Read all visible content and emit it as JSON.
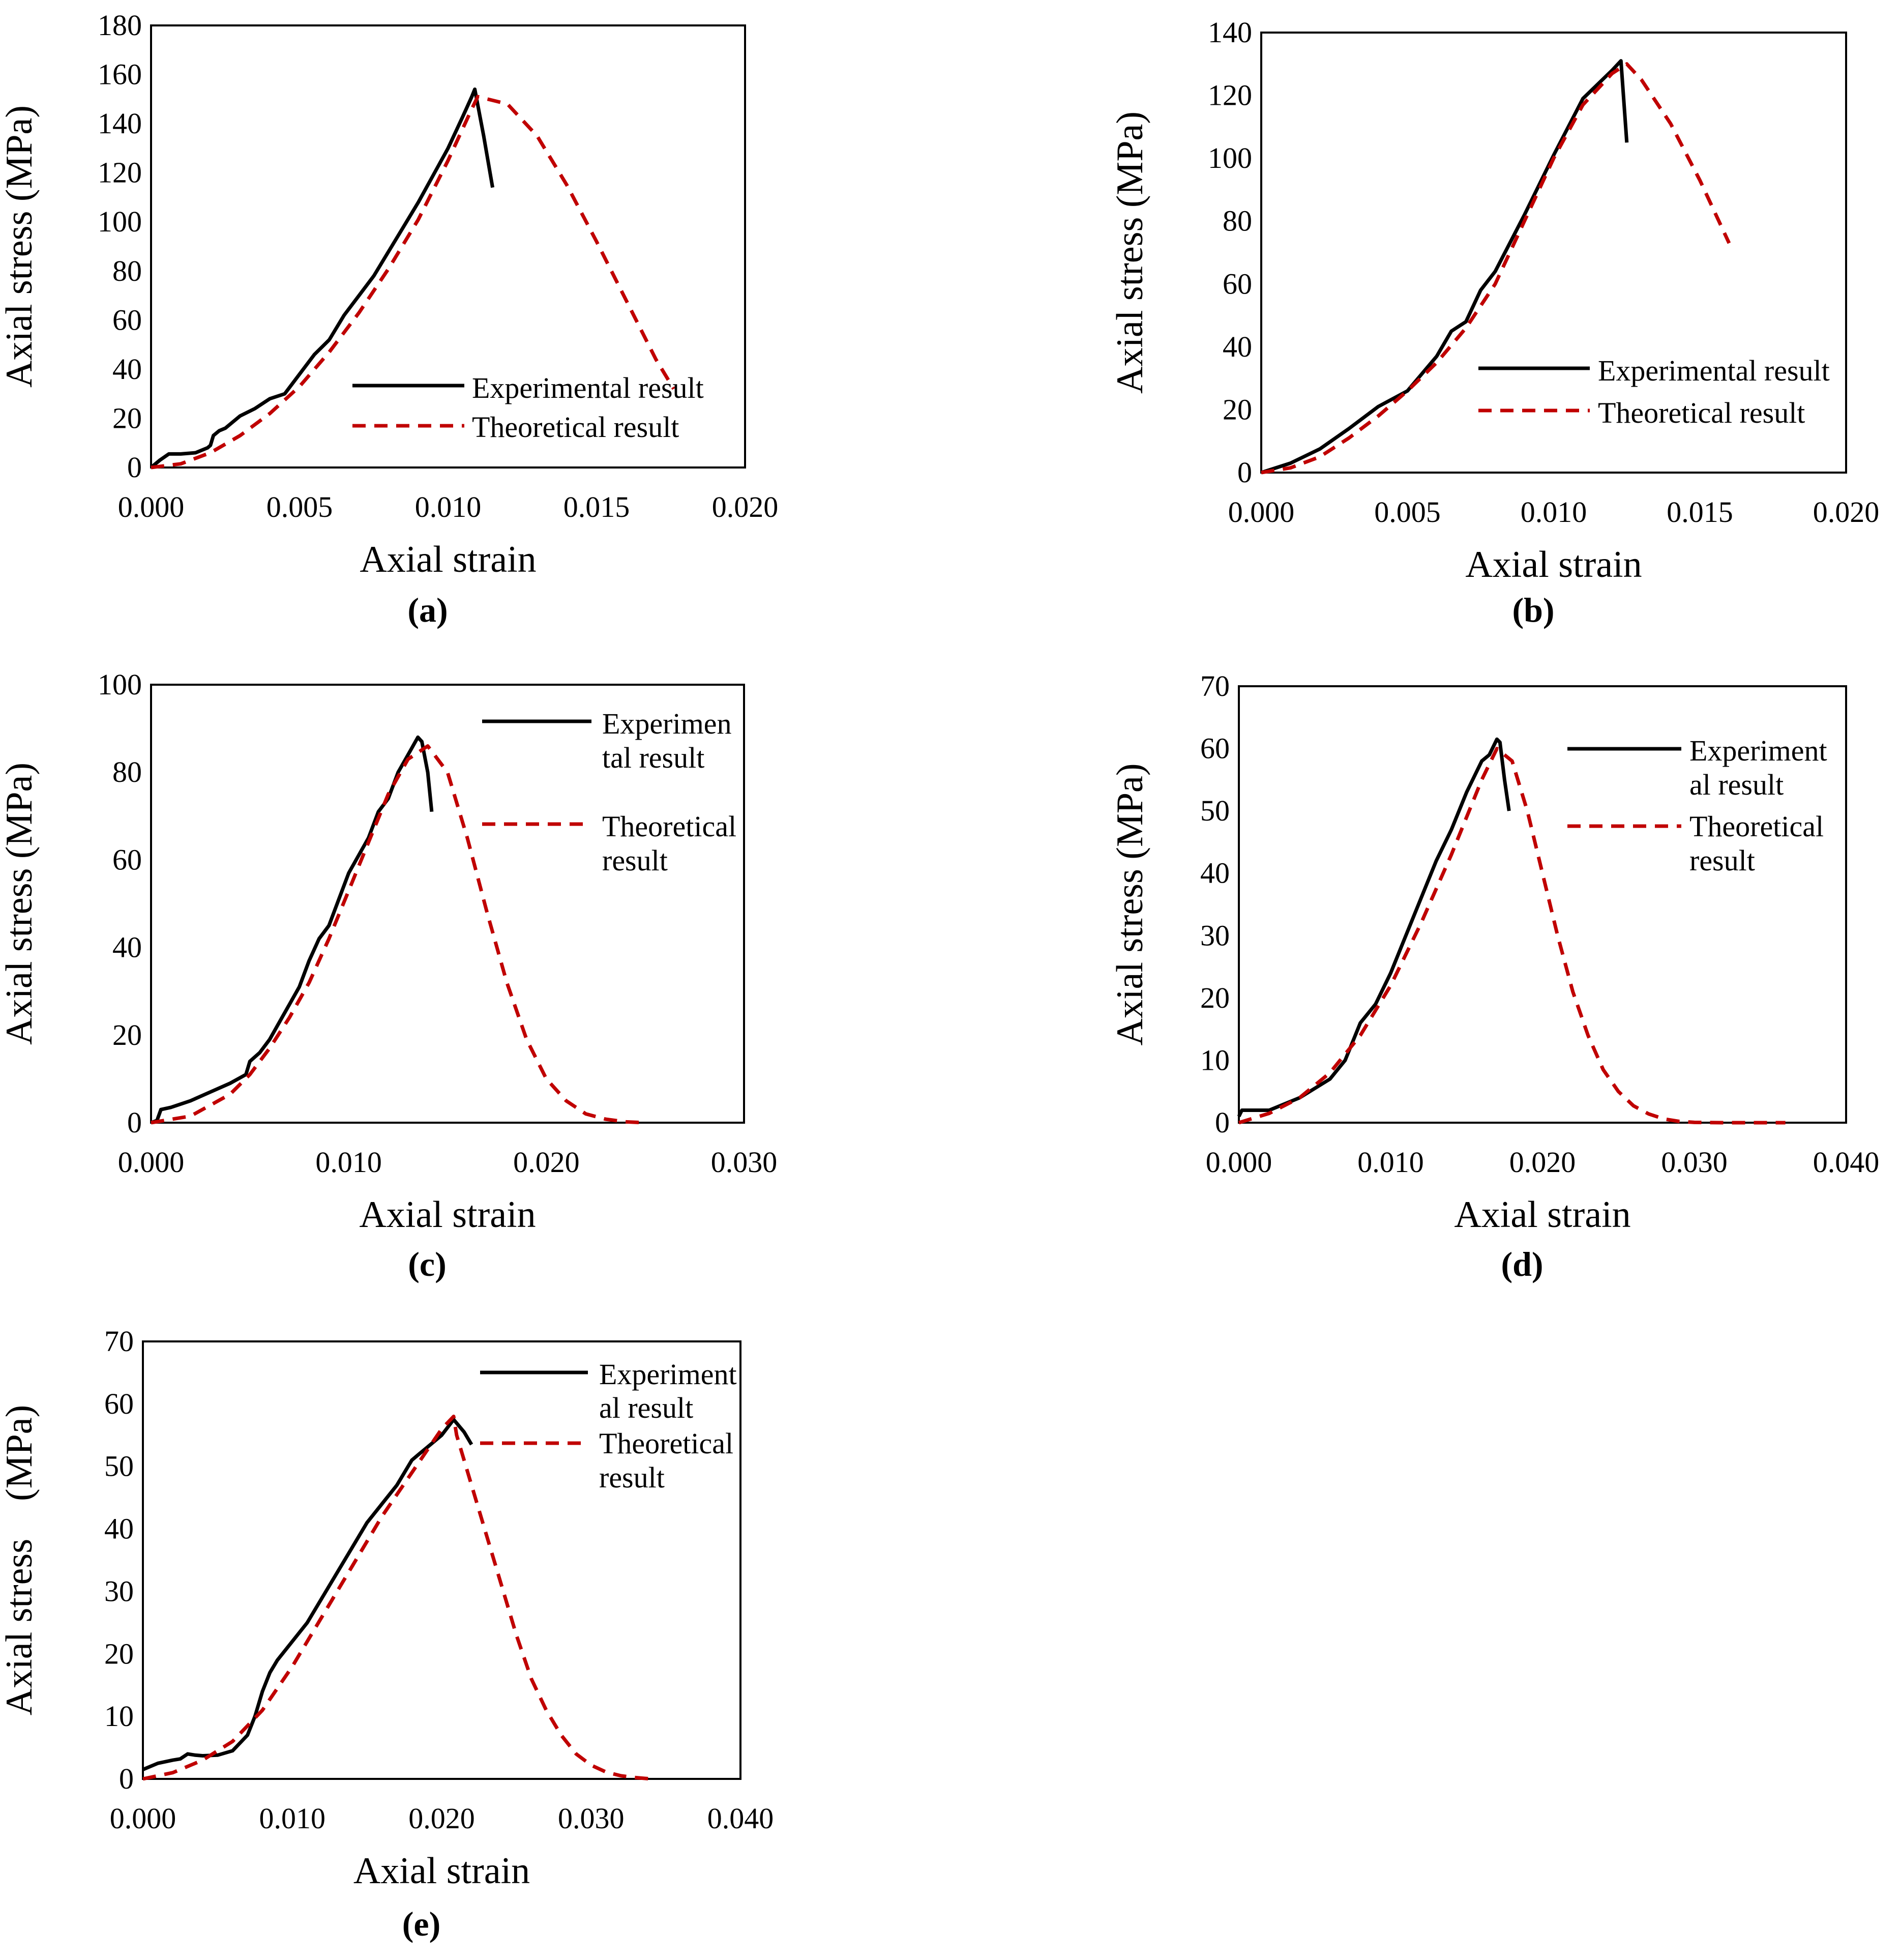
{
  "colors": {
    "experimental": "#000000",
    "theoretical": "#c00000",
    "frame": "#000000"
  },
  "chart_data": [
    {
      "type": "line",
      "panel": "(a)",
      "xlabel": "Axial strain",
      "ylabel": "Axial stress (MPa)",
      "xlim": [
        0,
        0.02
      ],
      "ylim": [
        0,
        180
      ],
      "xticks": [
        "0.000",
        "0.005",
        "0.010",
        "0.015",
        "0.020"
      ],
      "yticks": [
        "0",
        "20",
        "40",
        "60",
        "80",
        "100",
        "120",
        "140",
        "160",
        "180"
      ],
      "legend": {
        "placement": "bottom-right",
        "entries": [
          [
            "Experimental result"
          ],
          [
            "Theoretical result"
          ]
        ]
      },
      "series": [
        {
          "name": "Experimental result",
          "style": "solid",
          "x": [
            0,
            0.0003,
            0.0006,
            0.001,
            0.0015,
            0.0019,
            0.002,
            0.0021,
            0.0023,
            0.0025,
            0.003,
            0.0035,
            0.004,
            0.0045,
            0.005,
            0.0055,
            0.006,
            0.0065,
            0.007,
            0.0075,
            0.008,
            0.0085,
            0.009,
            0.0095,
            0.01,
            0.0105,
            0.0108,
            0.0109,
            0.0112,
            0.0115
          ],
          "y": [
            0,
            3,
            5.5,
            5.5,
            6,
            8,
            9,
            13,
            15,
            16,
            21,
            24,
            28,
            30,
            38,
            46,
            52,
            62,
            70,
            78,
            88,
            98,
            108,
            119,
            130,
            143,
            151,
            154,
            135,
            114
          ]
        },
        {
          "name": "Theoretical result",
          "style": "dashed",
          "x": [
            0,
            0.001,
            0.002,
            0.003,
            0.004,
            0.005,
            0.006,
            0.007,
            0.008,
            0.009,
            0.01,
            0.0108,
            0.011,
            0.012,
            0.013,
            0.014,
            0.015,
            0.016,
            0.017,
            0.0176
          ],
          "y": [
            0,
            1.5,
            6,
            13,
            22,
            33,
            47,
            63,
            81,
            101,
            125,
            146,
            151,
            148,
            135,
            115,
            92,
            68,
            44,
            32
          ]
        }
      ]
    },
    {
      "type": "line",
      "panel": "(b)",
      "xlabel": "Axial strain",
      "ylabel": "Axial stress (MPa)",
      "xlim": [
        0,
        0.02
      ],
      "ylim": [
        0,
        140
      ],
      "xticks": [
        "0.000",
        "0.005",
        "0.010",
        "0.015",
        "0.020"
      ],
      "yticks": [
        "0",
        "20",
        "40",
        "60",
        "80",
        "100",
        "120",
        "140"
      ],
      "legend": {
        "placement": "bottom-right",
        "entries": [
          [
            "Experimental result"
          ],
          [
            "Theoretical result"
          ]
        ]
      },
      "series": [
        {
          "name": "Experimental result",
          "style": "solid",
          "x": [
            0,
            0.001,
            0.002,
            0.003,
            0.004,
            0.005,
            0.006,
            0.0065,
            0.007,
            0.0075,
            0.008,
            0.009,
            0.01,
            0.011,
            0.012,
            0.0123,
            0.0125
          ],
          "y": [
            0,
            3,
            7.5,
            14,
            21,
            26,
            37,
            45,
            48,
            58,
            64,
            82,
            101,
            119,
            128,
            131,
            105
          ]
        },
        {
          "name": "Theoretical result",
          "style": "dashed",
          "x": [
            0,
            0.001,
            0.002,
            0.003,
            0.004,
            0.005,
            0.006,
            0.007,
            0.008,
            0.009,
            0.01,
            0.011,
            0.012,
            0.0125,
            0.013,
            0.014,
            0.015,
            0.016
          ],
          "y": [
            0,
            1.5,
            5,
            11,
            18,
            26,
            35,
            46,
            60,
            80,
            100,
            117,
            127,
            130,
            125,
            111,
            93,
            73
          ]
        }
      ]
    },
    {
      "type": "line",
      "panel": "(c)",
      "xlabel": "Axial strain",
      "ylabel": "Axial stress (MPa)",
      "xlim": [
        0,
        0.03
      ],
      "ylim": [
        0,
        100
      ],
      "xticks": [
        "0.000",
        "0.010",
        "0.020",
        "0.030"
      ],
      "yticks": [
        "0",
        "20",
        "40",
        "60",
        "80",
        "100"
      ],
      "legend": {
        "placement": "top-right",
        "entries": [
          [
            "Experimen",
            "tal result"
          ],
          [
            "Theoretical",
            "result"
          ]
        ]
      },
      "series": [
        {
          "name": "Experimental result",
          "style": "solid",
          "x": [
            0,
            0.0003,
            0.0005,
            0.001,
            0.002,
            0.003,
            0.004,
            0.0048,
            0.005,
            0.0055,
            0.006,
            0.0065,
            0.007,
            0.0075,
            0.008,
            0.0085,
            0.009,
            0.0095,
            0.01,
            0.011,
            0.0115,
            0.012,
            0.0125,
            0.013,
            0.0135,
            0.0137,
            0.014,
            0.0142
          ],
          "y": [
            0,
            0.5,
            3,
            3.5,
            5,
            7,
            9,
            11,
            14,
            16,
            19,
            23,
            27,
            31,
            37,
            42,
            45,
            51,
            57,
            65,
            71,
            74,
            80,
            84,
            88,
            87,
            80,
            71
          ]
        },
        {
          "name": "Theoretical result",
          "style": "dashed",
          "x": [
            0,
            0.002,
            0.004,
            0.005,
            0.006,
            0.007,
            0.008,
            0.009,
            0.01,
            0.011,
            0.012,
            0.013,
            0.014,
            0.015,
            0.016,
            0.017,
            0.018,
            0.019,
            0.02,
            0.021,
            0.022,
            0.023,
            0.024,
            0.025
          ],
          "y": [
            0,
            1.5,
            6.5,
            11,
            17,
            24,
            32,
            42,
            53,
            64,
            75,
            83,
            86,
            80,
            65,
            48,
            32,
            19,
            10,
            5,
            2,
            0.8,
            0.2,
            0
          ]
        }
      ]
    },
    {
      "type": "line",
      "panel": "(d)",
      "xlabel": "Axial strain",
      "ylabel": "Axial stress (MPa)",
      "xlim": [
        0,
        0.04
      ],
      "ylim": [
        0,
        70
      ],
      "xticks": [
        "0.000",
        "0.010",
        "0.020",
        "0.030",
        "0.040"
      ],
      "yticks": [
        "0",
        "10",
        "20",
        "30",
        "40",
        "50",
        "60",
        "70"
      ],
      "legend": {
        "placement": "top-right",
        "entries": [
          [
            "Experiment",
            "al result"
          ],
          [
            "Theoretical",
            "result"
          ]
        ]
      },
      "series": [
        {
          "name": "Experimental result",
          "style": "solid",
          "x": [
            0,
            0.0002,
            0.002,
            0.004,
            0.006,
            0.007,
            0.0075,
            0.008,
            0.009,
            0.01,
            0.011,
            0.012,
            0.013,
            0.014,
            0.015,
            0.016,
            0.0165,
            0.017,
            0.0172,
            0.0175,
            0.0178
          ],
          "y": [
            1,
            2,
            2,
            4,
            7,
            10,
            13,
            16,
            19,
            24,
            30,
            36,
            42,
            47,
            53,
            58,
            59,
            61.5,
            61,
            55,
            50
          ]
        },
        {
          "name": "Theoretical result",
          "style": "dashed",
          "x": [
            0,
            0.002,
            0.004,
            0.006,
            0.008,
            0.01,
            0.012,
            0.014,
            0.016,
            0.017,
            0.018,
            0.019,
            0.02,
            0.021,
            0.022,
            0.023,
            0.024,
            0.025,
            0.026,
            0.027,
            0.028,
            0.029,
            0.03,
            0.032,
            0.034,
            0.036
          ],
          "y": [
            0,
            1.5,
            4,
            8,
            14,
            22,
            32,
            43,
            55,
            60,
            58,
            50,
            40,
            30,
            21,
            14,
            8.5,
            5,
            2.7,
            1.4,
            0.6,
            0.2,
            0.05,
            0,
            0,
            0
          ]
        }
      ]
    },
    {
      "type": "line",
      "panel": "(e)",
      "xlabel": "Axial strain",
      "ylabel": "Axial stress　(MPa)",
      "xlim": [
        0,
        0.04
      ],
      "ylim": [
        0,
        70
      ],
      "xticks": [
        "0.000",
        "0.010",
        "0.020",
        "0.030",
        "0.040"
      ],
      "yticks": [
        "0",
        "10",
        "20",
        "30",
        "40",
        "50",
        "60",
        "70"
      ],
      "legend": {
        "placement": "top-right",
        "entries": [
          [
            "Experiment",
            "al result"
          ],
          [
            "Theoretical",
            "result"
          ]
        ]
      },
      "series": [
        {
          "name": "Experimental result",
          "style": "solid",
          "x": [
            0,
            0.001,
            0.002,
            0.0025,
            0.003,
            0.0035,
            0.004,
            0.005,
            0.006,
            0.007,
            0.0075,
            0.008,
            0.0085,
            0.009,
            0.01,
            0.011,
            0.012,
            0.013,
            0.014,
            0.015,
            0.016,
            0.017,
            0.018,
            0.0185,
            0.019,
            0.02,
            0.0208,
            0.0215,
            0.022
          ],
          "y": [
            1.5,
            2.5,
            3,
            3.2,
            4,
            3.8,
            3.7,
            3.8,
            4.5,
            7,
            10,
            14,
            17,
            19,
            22,
            25,
            29,
            33,
            37,
            41,
            44,
            47,
            51,
            52,
            53,
            55,
            57.5,
            55.5,
            53.5
          ]
        },
        {
          "name": "Theoretical result",
          "style": "dashed",
          "x": [
            0,
            0.002,
            0.004,
            0.006,
            0.008,
            0.01,
            0.012,
            0.014,
            0.016,
            0.018,
            0.02,
            0.0208,
            0.021,
            0.022,
            0.023,
            0.024,
            0.025,
            0.026,
            0.027,
            0.028,
            0.029,
            0.03,
            0.031,
            0.032,
            0.033,
            0.034
          ],
          "y": [
            0,
            1,
            3,
            6,
            11,
            18,
            26,
            34,
            42,
            49,
            56,
            58,
            55,
            47,
            39,
            31,
            23,
            16,
            11,
            7,
            4,
            2.2,
            1.1,
            0.5,
            0.2,
            0
          ]
        }
      ]
    }
  ]
}
